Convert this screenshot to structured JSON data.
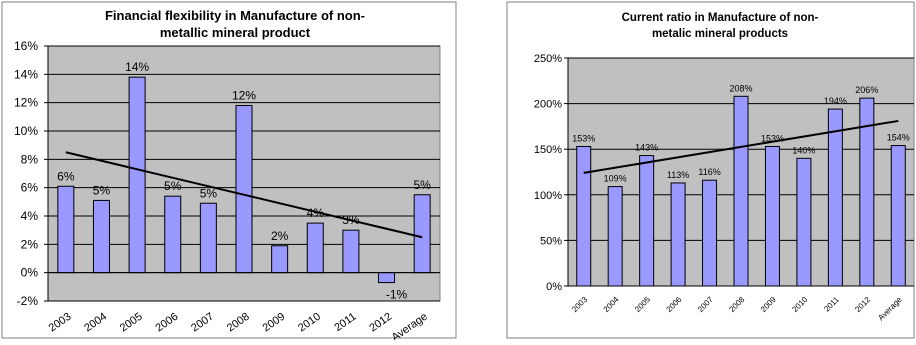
{
  "colors": {
    "plot_bg": "#c0c0c0",
    "bar_fill": "#9999ff",
    "bar_stroke": "#000000",
    "grid": "#000000",
    "trend": "#000000",
    "frame": "#808080"
  },
  "chart_data": [
    {
      "type": "bar",
      "title": "Financial flexibility in Manufacture of non-metallic mineral product",
      "title_lines": [
        "Financial flexibility in Manufacture of non-",
        "metallic mineral product"
      ],
      "categories": [
        "2003",
        "2004",
        "2005",
        "2006",
        "2007",
        "2008",
        "2009",
        "2010",
        "2011",
        "2012",
        "Average"
      ],
      "values": [
        6.1,
        5.1,
        13.8,
        5.4,
        4.9,
        11.8,
        1.9,
        3.5,
        3.0,
        -0.7,
        5.5
      ],
      "data_labels": [
        "6%",
        "5%",
        "14%",
        "5%",
        "5%",
        "12%",
        "2%",
        "4%",
        "3%",
        "-1%",
        "5%"
      ],
      "yticks": [
        "-2%",
        "0%",
        "2%",
        "4%",
        "6%",
        "8%",
        "10%",
        "12%",
        "14%",
        "16%"
      ],
      "ylim": [
        -2,
        16
      ],
      "ytick_step": 2,
      "trendline": {
        "type": "linear",
        "start": 8.5,
        "end": 2.5
      },
      "xlabel": "",
      "ylabel": "",
      "grid": true,
      "legend": "none"
    },
    {
      "type": "bar",
      "title": "Current ratio in Manufacture of non-metalic mineral products",
      "title_lines": [
        "Current ratio in Manufacture of non-",
        "metalic mineral products"
      ],
      "categories": [
        "2003",
        "2004",
        "2005",
        "2006",
        "2007",
        "2008",
        "2009",
        "2010",
        "2011",
        "2012",
        "Average"
      ],
      "values": [
        153,
        109,
        143,
        113,
        116,
        208,
        153,
        140,
        194,
        206,
        154
      ],
      "data_labels": [
        "153%",
        "109%",
        "143%",
        "113%",
        "116%",
        "208%",
        "153%",
        "140%",
        "194%",
        "206%",
        "154%"
      ],
      "yticks": [
        "0%",
        "50%",
        "100%",
        "150%",
        "200%",
        "250%"
      ],
      "ylim": [
        0,
        250
      ],
      "ytick_step": 50,
      "trendline": {
        "type": "linear",
        "start": 124,
        "end": 181
      },
      "xlabel": "",
      "ylabel": "",
      "grid": true,
      "legend": "none"
    }
  ]
}
